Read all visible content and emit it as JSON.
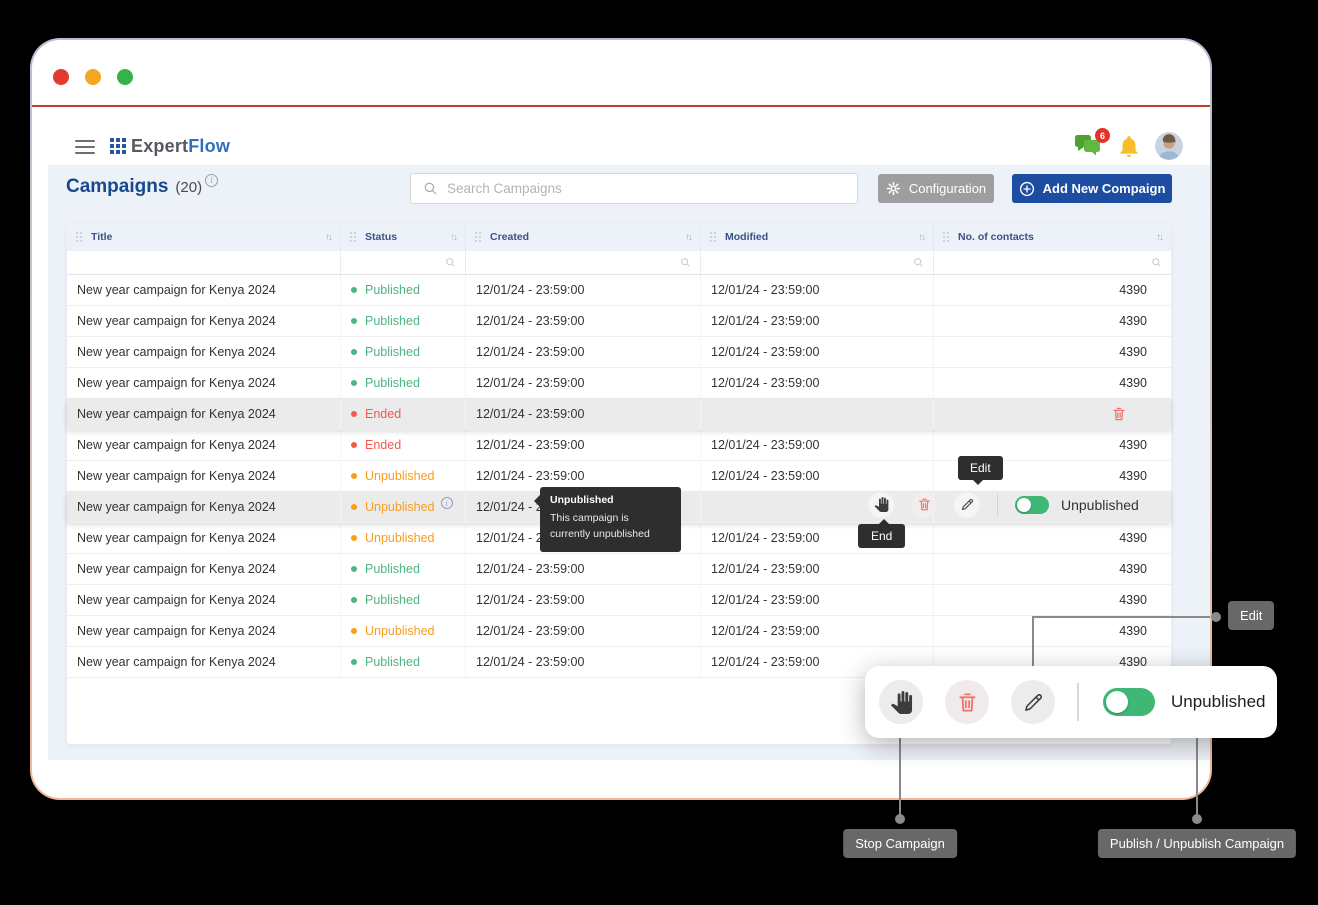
{
  "window": {
    "traffic_lights": [
      "red",
      "yellow",
      "green"
    ]
  },
  "header": {
    "logo_expert": "Expert",
    "logo_flow": "Flow",
    "chat_badge": "6",
    "icons": [
      "hamburger-icon",
      "chat-icon",
      "bell-icon",
      "avatar"
    ]
  },
  "page": {
    "title": "Campaigns",
    "count": "(20)",
    "search_placeholder": "Search Campaigns",
    "configuration_label": "Configuration",
    "add_new_label": "Add New Compaign"
  },
  "table": {
    "columns": [
      "Title",
      "Status",
      "Created",
      "Modified",
      "No. of contacts"
    ],
    "rows": [
      {
        "title": "New year campaign for Kenya 2024",
        "status": "Published",
        "status_type": "published",
        "created": "12/01/24 - 23:59:00",
        "modified": "12/01/24 - 23:59:00",
        "contacts": "4390"
      },
      {
        "title": "New year campaign for Kenya 2024",
        "status": "Published",
        "status_type": "published",
        "created": "12/01/24 - 23:59:00",
        "modified": "12/01/24 - 23:59:00",
        "contacts": "4390"
      },
      {
        "title": "New year campaign for Kenya 2024",
        "status": "Published",
        "status_type": "published",
        "created": "12/01/24 - 23:59:00",
        "modified": "12/01/24 - 23:59:00",
        "contacts": "4390"
      },
      {
        "title": "New year campaign for Kenya 2024",
        "status": "Published",
        "status_type": "published",
        "created": "12/01/24 - 23:59:00",
        "modified": "12/01/24 - 23:59:00",
        "contacts": "4390"
      },
      {
        "title": "New year campaign for Kenya 2024",
        "status": "Ended",
        "status_type": "ended",
        "created": "12/01/24 - 23:59:00",
        "modified": "",
        "contacts": "",
        "highlight": true,
        "show_delete": true
      },
      {
        "title": "New year campaign for Kenya 2024",
        "status": "Ended",
        "status_type": "ended",
        "created": "12/01/24 - 23:59:00",
        "modified": "12/01/24 - 23:59:00",
        "contacts": "4390"
      },
      {
        "title": "New year campaign for Kenya 2024",
        "status": "Unpublished",
        "status_type": "unpublished",
        "created": "12/01/24 - 23:59:00",
        "modified": "12/01/24 - 23:59:00",
        "contacts": "4390"
      },
      {
        "title": "New year campaign for Kenya 2024",
        "status": "Unpublished",
        "status_type": "unpublished",
        "created": "12/01/24 - 23:59:00",
        "modified": "",
        "contacts": "",
        "highlight": true,
        "info": true,
        "show_actions": true
      },
      {
        "title": "New year campaign for Kenya 2024",
        "status": "Unpublished",
        "status_type": "unpublished",
        "created": "12/01/24 - 23:59:00",
        "modified": "12/01/24 - 23:59:00",
        "contacts": "4390"
      },
      {
        "title": "New year campaign for Kenya 2024",
        "status": "Published",
        "status_type": "published",
        "created": "12/01/24 - 23:59:00",
        "modified": "12/01/24 - 23:59:00",
        "contacts": "4390"
      },
      {
        "title": "New year campaign for Kenya 2024",
        "status": "Published",
        "status_type": "published",
        "created": "12/01/24 - 23:59:00",
        "modified": "12/01/24 - 23:59:00",
        "contacts": "4390"
      },
      {
        "title": "New year campaign for Kenya 2024",
        "status": "Unpublished",
        "status_type": "unpublished",
        "created": "12/01/24 - 23:59:00",
        "modified": "12/01/24 - 23:59:00",
        "contacts": "4390"
      },
      {
        "title": "New year campaign for Kenya 2024",
        "status": "Published",
        "status_type": "published",
        "created": "12/01/24 - 23:59:00",
        "modified": "12/01/24 - 23:59:00",
        "contacts": "4390"
      }
    ]
  },
  "row_actions": {
    "toggle_label": "Unpublished",
    "icons": [
      "stop-hand-icon",
      "delete-icon",
      "edit-pencil-icon",
      "publish-toggle"
    ]
  },
  "tooltips": {
    "unpublished": {
      "title": "Unpublished",
      "body": "This campaign is currently unpublished"
    },
    "edit": "Edit",
    "end": "End"
  },
  "panel": {
    "toggle_label": "Unpublished",
    "icons": [
      "stop-hand-icon",
      "delete-icon",
      "edit-pencil-icon",
      "publish-toggle"
    ]
  },
  "callouts": {
    "edit": "Edit",
    "stop": "Stop Campaign",
    "publish": "Publish / Unpublish Campaign"
  },
  "colors": {
    "published": "#4db582",
    "ended": "#f25a4f",
    "unpublished": "#f99d1c",
    "accent_blue": "#1c4da1",
    "config_gray": "#9e9e9e",
    "toggle_green": "#3eb874",
    "tooltip_bg": "#2e2e2e",
    "window_divider_red": "#b8402f"
  }
}
